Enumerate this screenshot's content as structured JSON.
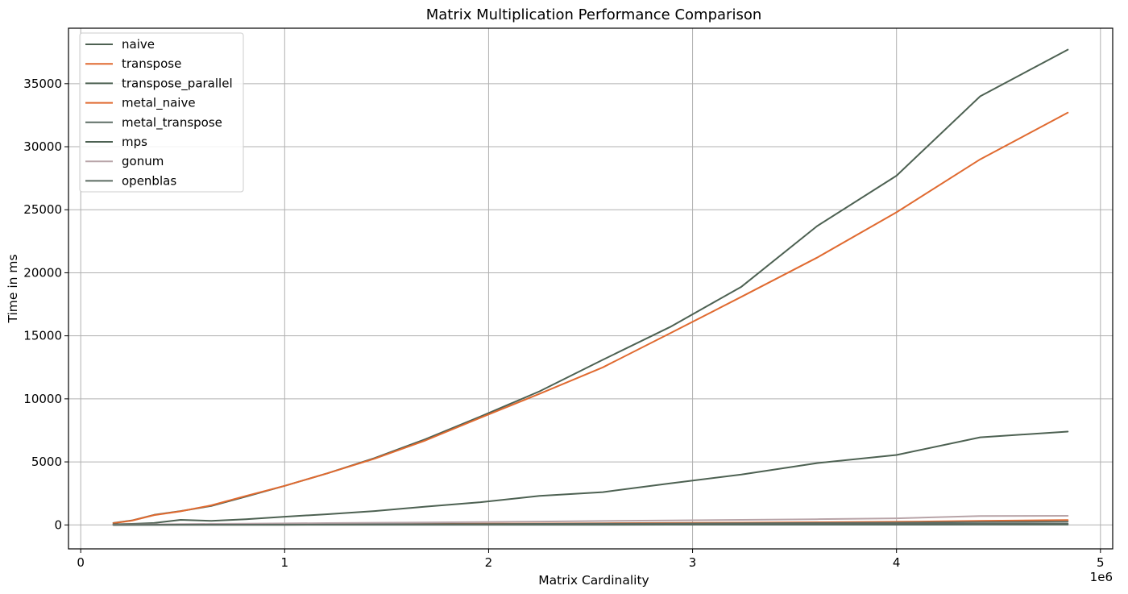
{
  "chart_data": {
    "type": "line",
    "title": "Matrix Multiplication Performance Comparison",
    "xlabel": "Matrix Cardinality",
    "ylabel": "Time in ms",
    "x_offset_label": "1e6",
    "xlim": [
      -0.06,
      5.06
    ],
    "ylim": [
      -1900,
      39400
    ],
    "xticks": [
      0,
      1,
      2,
      3,
      4,
      5
    ],
    "xtick_labels": [
      "0",
      "1",
      "2",
      "3",
      "4",
      "5"
    ],
    "yticks": [
      0,
      5000,
      10000,
      15000,
      20000,
      25000,
      30000,
      35000
    ],
    "ytick_labels": [
      "0",
      "5000",
      "10000",
      "15000",
      "20000",
      "25000",
      "30000",
      "35000"
    ],
    "grid": true,
    "legend_position": "upper left",
    "series": [
      {
        "name": "naive",
        "color": "#4d6152",
        "x": [
          0.16,
          0.25,
          0.36,
          0.49,
          0.64,
          0.81,
          1.0,
          1.21,
          1.44,
          1.69,
          1.96,
          2.25,
          2.56,
          2.89,
          3.24,
          3.61,
          4.0,
          4.41,
          4.84
        ],
        "y": [
          150,
          350,
          800,
          1100,
          1500,
          2250,
          3100,
          4100,
          5300,
          6800,
          8600,
          10600,
          13100,
          15700,
          18900,
          23700,
          27700,
          34000,
          37700
        ]
      },
      {
        "name": "transpose",
        "color": "#e06a30",
        "x": [
          0.16,
          0.25,
          0.36,
          0.49,
          0.64,
          0.81,
          1.0,
          1.21,
          1.44,
          1.69,
          1.96,
          2.25,
          2.56,
          2.89,
          3.24,
          3.61,
          4.0,
          4.41,
          4.84
        ],
        "y": [
          140,
          340,
          780,
          1080,
          1550,
          2300,
          3100,
          4100,
          5250,
          6700,
          8500,
          10400,
          12500,
          15200,
          18100,
          21200,
          24800,
          29000,
          32700
        ]
      },
      {
        "name": "transpose_parallel",
        "color": "#4d6152",
        "x": [
          0.16,
          0.25,
          0.36,
          0.49,
          0.64,
          0.81,
          1.0,
          1.21,
          1.44,
          1.69,
          1.96,
          2.25,
          2.56,
          2.89,
          3.24,
          3.61,
          4.0,
          4.41,
          4.84
        ],
        "y": [
          50,
          80,
          150,
          400,
          320,
          450,
          650,
          850,
          1100,
          1450,
          1800,
          2300,
          2600,
          3300,
          4000,
          4900,
          5550,
          6950,
          7400
        ]
      },
      {
        "name": "metal_naive",
        "color": "#e06a30",
        "x": [
          0.16,
          0.25,
          0.36,
          0.49,
          0.64,
          0.81,
          1.0,
          1.21,
          1.44,
          1.69,
          1.96,
          2.25,
          2.56,
          2.89,
          3.24,
          3.61,
          4.0,
          4.41,
          4.84
        ],
        "y": [
          10,
          15,
          20,
          25,
          30,
          35,
          45,
          55,
          70,
          80,
          95,
          110,
          130,
          150,
          180,
          210,
          250,
          320,
          380
        ]
      },
      {
        "name": "metal_transpose",
        "color": "#5f6e66",
        "x": [
          0.16,
          0.25,
          0.36,
          0.49,
          0.64,
          0.81,
          1.0,
          1.21,
          1.44,
          1.69,
          1.96,
          2.25,
          2.56,
          2.89,
          3.24,
          3.61,
          4.0,
          4.41,
          4.84
        ],
        "y": [
          10,
          12,
          15,
          20,
          25,
          30,
          35,
          40,
          50,
          60,
          70,
          80,
          95,
          110,
          130,
          150,
          175,
          220,
          260
        ]
      },
      {
        "name": "mps",
        "color": "#4d6152",
        "x": [
          0.16,
          0.25,
          0.36,
          0.49,
          0.64,
          0.81,
          1.0,
          1.21,
          1.44,
          1.69,
          1.96,
          2.25,
          2.56,
          2.89,
          3.24,
          3.61,
          4.0,
          4.41,
          4.84
        ],
        "y": [
          5,
          5,
          5,
          6,
          6,
          7,
          8,
          9,
          10,
          11,
          12,
          13,
          14,
          15,
          16,
          18,
          20,
          22,
          25
        ]
      },
      {
        "name": "gonum",
        "color": "#b8a4a8",
        "x": [
          0.16,
          0.25,
          0.36,
          0.49,
          0.64,
          0.81,
          1.0,
          1.21,
          1.44,
          1.69,
          1.96,
          2.25,
          2.56,
          2.89,
          3.24,
          3.61,
          4.0,
          4.41,
          4.84
        ],
        "y": [
          20,
          30,
          45,
          60,
          80,
          100,
          120,
          145,
          170,
          200,
          230,
          270,
          310,
          350,
          400,
          450,
          520,
          700,
          720
        ]
      },
      {
        "name": "openblas",
        "color": "#5c6b62",
        "x": [
          0.16,
          0.25,
          0.36,
          0.49,
          0.64,
          0.81,
          1.0,
          1.21,
          1.44,
          1.69,
          1.96,
          2.25,
          2.56,
          2.89,
          3.24,
          3.61,
          4.0,
          4.41,
          4.84
        ],
        "y": [
          8,
          10,
          12,
          15,
          18,
          20,
          25,
          28,
          32,
          36,
          40,
          45,
          50,
          55,
          60,
          70,
          80,
          90,
          100
        ]
      }
    ]
  }
}
